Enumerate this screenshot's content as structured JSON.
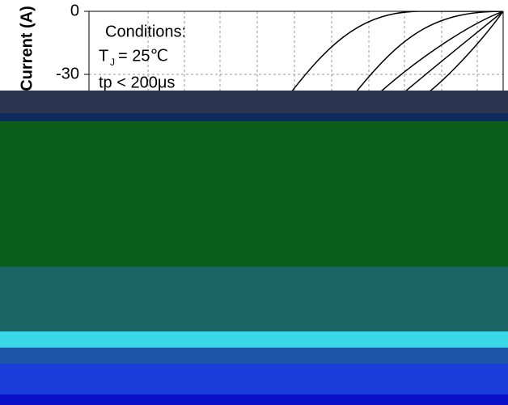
{
  "chart_data": {
    "type": "line",
    "y_label": "Current (A)",
    "annotations": [
      "Conditions:",
      "T",
      "J",
      "= 25℃",
      "tp < 200μs"
    ],
    "ylim": [
      -40,
      0
    ],
    "yticks": [
      0,
      -30
    ],
    "grid": true
  }
}
